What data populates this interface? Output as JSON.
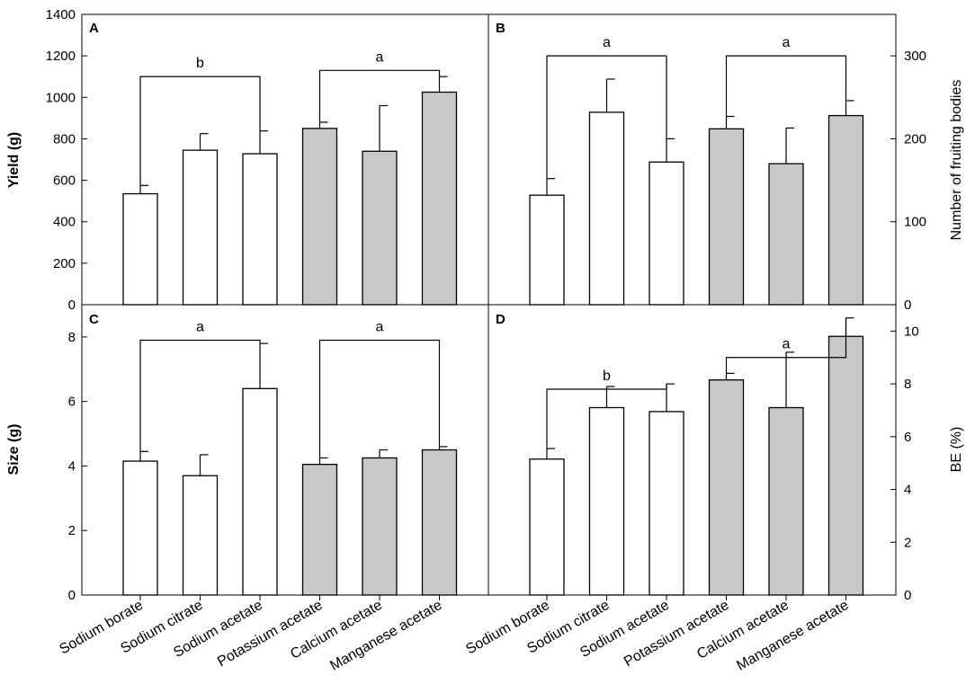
{
  "chart_data": {
    "type": "bar",
    "categories": [
      "Sodium borate",
      "Sodium citrate",
      "Sodium acetate",
      "Potassium acetate",
      "Calcium acetate",
      "Manganese acetate"
    ],
    "colors": {
      "open_bar": "#ffffff",
      "shaded_bar": "#c8c8c8",
      "shaded_from_index": 3,
      "stroke": "#000000"
    },
    "panels": [
      {
        "id": "A",
        "ylabel": "Yield (g)",
        "ylim": [
          0,
          1400
        ],
        "yticks": [
          0,
          200,
          400,
          600,
          800,
          1000,
          1200,
          1400
        ],
        "values": [
          535,
          745,
          728,
          850,
          740,
          1025
        ],
        "errors": [
          40,
          80,
          110,
          30,
          220,
          75
        ],
        "brackets": [
          {
            "from": 0,
            "to": 2,
            "level": 1100,
            "letter": "b"
          },
          {
            "from": 3,
            "to": 5,
            "level": 1130,
            "letter": "a"
          }
        ]
      },
      {
        "id": "B",
        "ylabel": "Number of fruiting bodies",
        "ylim": [
          0,
          350
        ],
        "yticks": [
          0,
          100,
          200,
          300
        ],
        "values": [
          132,
          232,
          172,
          212,
          170,
          228
        ],
        "errors": [
          20,
          40,
          28,
          15,
          43,
          18
        ],
        "brackets": [
          {
            "from": 0,
            "to": 2,
            "level": 300,
            "letter": "a"
          },
          {
            "from": 3,
            "to": 5,
            "level": 300,
            "letter": "a"
          }
        ]
      },
      {
        "id": "C",
        "ylabel": "Size (g)",
        "ylim": [
          0,
          9
        ],
        "yticks": [
          0,
          2,
          4,
          6,
          8
        ],
        "values": [
          4.15,
          3.7,
          6.4,
          4.05,
          4.25,
          4.5
        ],
        "errors": [
          0.3,
          0.65,
          1.4,
          0.2,
          0.25,
          0.1
        ],
        "brackets": [
          {
            "from": 0,
            "to": 2,
            "level": 7.9,
            "letter": "a"
          },
          {
            "from": 3,
            "to": 5,
            "level": 7.9,
            "letter": "a"
          }
        ]
      },
      {
        "id": "D",
        "ylabel": "BE (%)",
        "ylim": [
          0,
          11
        ],
        "yticks": [
          0,
          2,
          4,
          6,
          8,
          10
        ],
        "values": [
          5.15,
          7.1,
          6.95,
          8.15,
          7.1,
          9.8
        ],
        "errors": [
          0.4,
          0.8,
          1.05,
          0.25,
          2.1,
          0.7
        ],
        "brackets": [
          {
            "from": 0,
            "to": 2,
            "level": 7.8,
            "letter": "b"
          },
          {
            "from": 3,
            "to": 5,
            "level": 9.0,
            "letter": "a"
          }
        ]
      }
    ]
  }
}
